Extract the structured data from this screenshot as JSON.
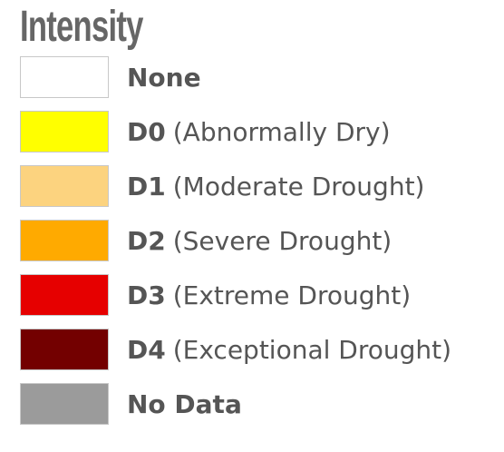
{
  "title": "Intensity",
  "items": [
    {
      "code": "None",
      "color": "#ffffff"
    },
    {
      "code": "D0",
      "description": "(Abnormally Dry)",
      "color": "#ffff00"
    },
    {
      "code": "D1",
      "description": "(Moderate Drought)",
      "color": "#fcd37f"
    },
    {
      "code": "D2",
      "description": "(Severe Drought)",
      "color": "#ffaa00"
    },
    {
      "code": "D3",
      "description": "(Extreme Drought)",
      "color": "#e60000"
    },
    {
      "code": "D4",
      "description": "(Exceptional Drought)",
      "color": "#730000"
    },
    {
      "code": "No Data",
      "color": "#9b9b9b"
    }
  ]
}
